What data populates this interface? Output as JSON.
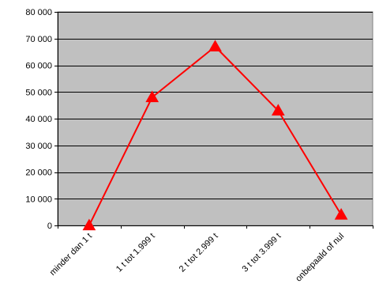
{
  "chart_data": {
    "type": "line",
    "categories": [
      "minder dan 1 t",
      "1 t tot 1.999 t",
      "2 t tot 2.999 t",
      "3 t tot 3.999 t",
      "onbepaald of nul"
    ],
    "series": [
      {
        "values": [
          0,
          48000,
          67000,
          43000,
          4000
        ]
      }
    ],
    "ylim": [
      0,
      80000
    ],
    "yticks": [
      0,
      10000,
      20000,
      30000,
      40000,
      50000,
      60000,
      70000,
      80000
    ],
    "ytick_labels": [
      "0",
      "10 000",
      "20 000",
      "30 000",
      "40 000",
      "50 000",
      "60 000",
      "70 000",
      "80 000"
    ],
    "title": "",
    "xlabel": "",
    "ylabel": "",
    "grid": true,
    "legend": false,
    "colors": {
      "plot_background": "#c0c0c0",
      "line": "#ff0000",
      "gridline": "#000000"
    },
    "marker": "triangle"
  }
}
